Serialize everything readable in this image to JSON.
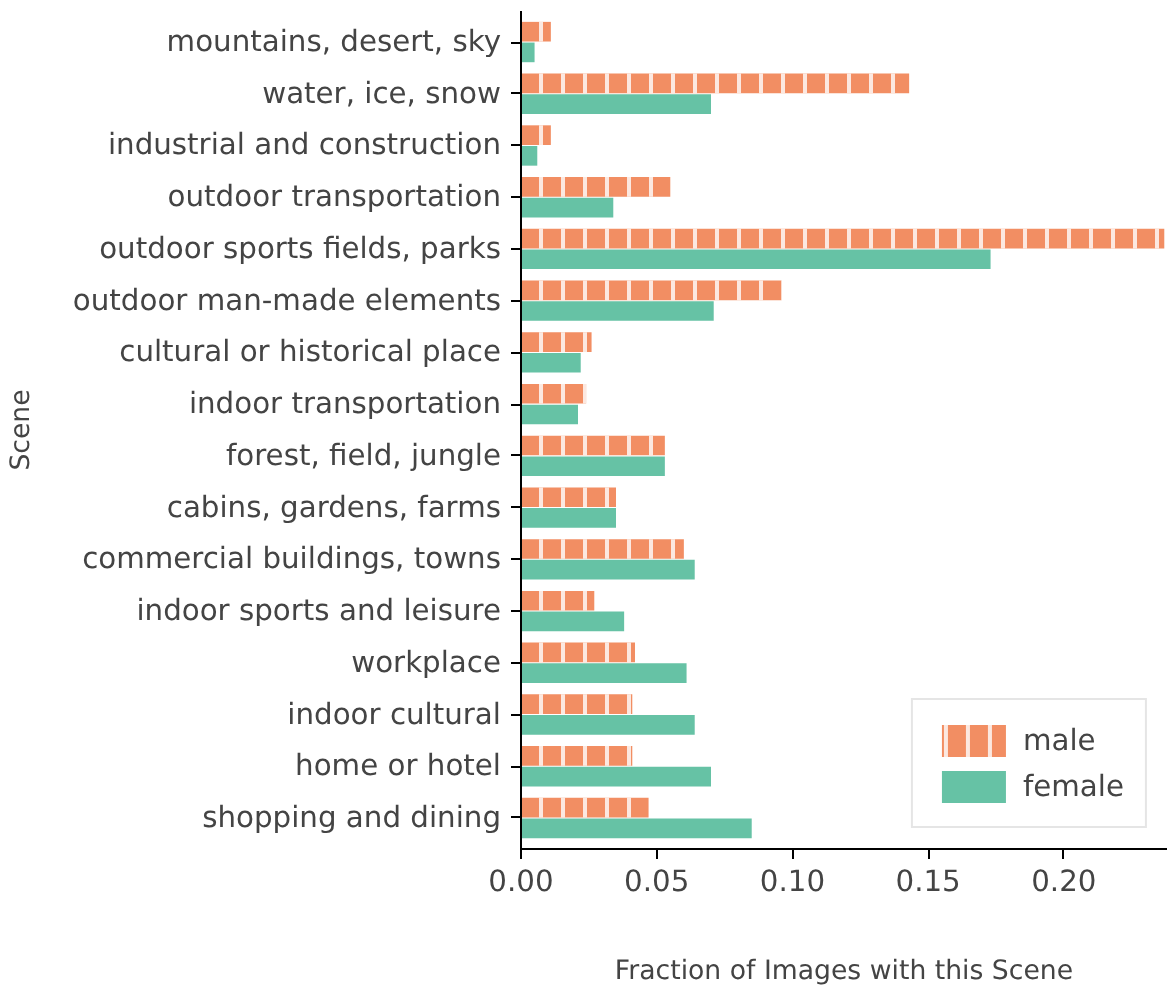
{
  "chart_data": {
    "type": "bar",
    "orientation": "horizontal",
    "xlabel": "Fraction of Images with this Scene",
    "ylabel": "Scene",
    "categories": [
      "mountains, desert, sky",
      "water, ice, snow",
      "industrial and construction",
      "outdoor transportation",
      "outdoor sports fields, parks",
      "outdoor man-made elements",
      "cultural or historical place",
      "indoor transportation",
      "forest, field, jungle",
      "cabins, gardens, farms",
      "commercial buildings, towns",
      "indoor sports and leisure",
      "workplace",
      "indoor cultural",
      "home or hotel",
      "shopping and dining"
    ],
    "series": [
      {
        "name": "male",
        "color": "#f28e63",
        "values": [
          0.011,
          0.143,
          0.011,
          0.055,
          0.237,
          0.096,
          0.026,
          0.024,
          0.053,
          0.035,
          0.06,
          0.027,
          0.042,
          0.041,
          0.041,
          0.047
        ]
      },
      {
        "name": "female",
        "color": "#66c2a5",
        "values": [
          0.005,
          0.07,
          0.006,
          0.034,
          0.173,
          0.071,
          0.022,
          0.021,
          0.053,
          0.035,
          0.064,
          0.038,
          0.061,
          0.064,
          0.07,
          0.085
        ]
      }
    ],
    "xlim": [
      0,
      0.238
    ],
    "xticks": [
      {
        "value": 0,
        "label": "0.00"
      },
      {
        "value": 0.05,
        "label": "0.05"
      },
      {
        "value": 0.1,
        "label": "0.10"
      },
      {
        "value": 0.15,
        "label": "0.15"
      },
      {
        "value": 0.2,
        "label": "0.20"
      }
    ],
    "grid": false,
    "legend": "bottom right"
  }
}
